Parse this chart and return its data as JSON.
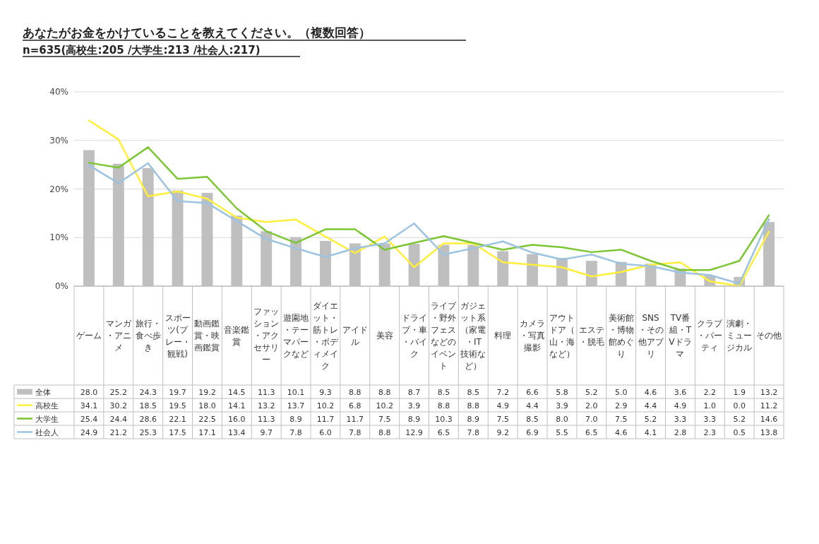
{
  "chart_data": {
    "type": "bar",
    "title": "あなたがお金をかけていることを教えてください。（複数回答）",
    "subtitle": "n=635(高校生:205 /大学生:213 /社会人:217)",
    "categories": [
      "ゲーム",
      "マンガ・アニメ",
      "旅行・食べ歩き",
      "スポーツ(プレー・観戦)",
      "動画鑑賞・映画鑑賞",
      "音楽鑑賞",
      "ファッション・アクセサリー",
      "遊園地・テーマパークなど",
      "ダイエット・筋トレ・ボディメイク",
      "アイドル",
      "美容",
      "ドライブ・車・バイク",
      "ライブ・野外フェスなどのイベント",
      "ガジェット系（家電・IT技術など）",
      "料理",
      "カメラ・写真撮影",
      "アウトドア（山・海など）",
      "エステ・脱毛",
      "美術館・博物館めぐり",
      "SNS・その他アプリ",
      "TV番組・TVドラマ",
      "クラブ・パーティ",
      "演劇・ミュージカル",
      "その他"
    ],
    "series": [
      {
        "name": "全体",
        "color": "#bfbfbf",
        "values": [
          28.0,
          25.2,
          24.3,
          19.7,
          19.2,
          14.5,
          11.3,
          10.1,
          9.3,
          8.8,
          8.8,
          8.7,
          8.5,
          8.5,
          7.2,
          6.6,
          5.8,
          5.2,
          5.0,
          4.6,
          3.6,
          2.2,
          1.9,
          13.2
        ],
        "value_labels": [
          "28.0",
          "25.2",
          "24.3",
          "19.7",
          "19.2",
          "14.5",
          "11.3",
          "10.1",
          "9.3",
          "8.8",
          "8.8",
          "8.7",
          "8.5",
          "8.5",
          "7.2",
          "6.6",
          "5.8",
          "5.2",
          "5.0",
          "4.6",
          "3.6",
          "2.2",
          "1.9",
          "13.2"
        ]
      },
      {
        "name": "高校生",
        "type": "line",
        "color": "#ffef3a",
        "values": [
          34.1,
          30.2,
          18.5,
          19.5,
          18.0,
          14.1,
          13.2,
          13.7,
          10.2,
          6.8,
          10.2,
          3.9,
          8.8,
          8.8,
          4.9,
          4.4,
          3.9,
          2.0,
          2.9,
          4.4,
          4.9,
          1.0,
          0.0,
          11.2
        ],
        "value_labels": [
          "34.1",
          "30.2",
          "18.5",
          "19.5",
          "18.0",
          "14.1",
          "13.2",
          "13.7",
          "10.2",
          "6.8",
          "10.2",
          "3.9",
          "8.8",
          "8.8",
          "4.9",
          "4.4",
          "3.9",
          "2.0",
          "2.9",
          "4.4",
          "4.9",
          "1.0",
          "0.0",
          "11.2"
        ]
      },
      {
        "name": "大学生",
        "type": "line",
        "color": "#7cc634",
        "values": [
          25.4,
          24.4,
          28.6,
          22.1,
          22.5,
          16.0,
          11.3,
          8.9,
          11.7,
          11.7,
          7.5,
          8.9,
          10.3,
          8.9,
          7.5,
          8.5,
          8.0,
          7.0,
          7.5,
          5.2,
          3.3,
          3.3,
          5.2,
          14.6
        ],
        "value_labels": [
          "25.4",
          "24.4",
          "28.6",
          "22.1",
          "22.5",
          "16.0",
          "11.3",
          "8.9",
          "11.7",
          "11.7",
          "7.5",
          "8.9",
          "10.3",
          "8.9",
          "7.5",
          "8.5",
          "8.0",
          "7.0",
          "7.5",
          "5.2",
          "3.3",
          "3.3",
          "5.2",
          "14.6"
        ]
      },
      {
        "name": "社会人",
        "type": "line",
        "color": "#9dc3e0",
        "values": [
          24.9,
          21.2,
          25.3,
          17.5,
          17.1,
          13.4,
          9.7,
          7.8,
          6.0,
          7.8,
          8.8,
          12.9,
          6.5,
          7.8,
          9.2,
          6.9,
          5.5,
          6.5,
          4.6,
          4.1,
          2.8,
          2.3,
          0.5,
          13.8
        ],
        "value_labels": [
          "24.9",
          "21.2",
          "25.3",
          "17.5",
          "17.1",
          "13.4",
          "9.7",
          "7.8",
          "6.0",
          "7.8",
          "8.8",
          "12.9",
          "6.5",
          "7.8",
          "9.2",
          "6.9",
          "5.5",
          "6.5",
          "4.6",
          "4.1",
          "2.8",
          "2.3",
          "0.5",
          "13.8"
        ]
      }
    ],
    "ylim": [
      0,
      40
    ],
    "yticks": [
      {
        "value": 0,
        "label": "0%"
      },
      {
        "value": 10,
        "label": "10%"
      },
      {
        "value": 20,
        "label": "20%"
      },
      {
        "value": 30,
        "label": "30%"
      },
      {
        "value": 40,
        "label": "40%"
      }
    ],
    "grid": "y",
    "legend": "bottom",
    "marker": "none",
    "line_style": "solid"
  }
}
